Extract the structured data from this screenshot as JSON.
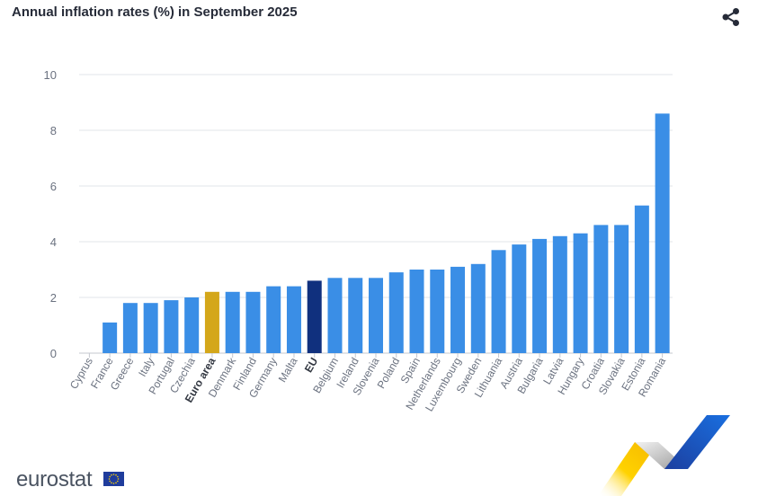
{
  "header": {
    "title": "Annual inflation rates (%) in September 2025",
    "share_icon": "share-icon"
  },
  "footer": {
    "brand": "eurostat",
    "flag_icon": "eu-flag-icon"
  },
  "colors": {
    "country": "#3a8ee6",
    "euro_area": "#d4a71a",
    "eu": "#10307e",
    "grid": "#e2e5ea",
    "axis_text": "#6b7280"
  },
  "chart_data": {
    "type": "bar",
    "title": "Annual inflation rates (%) in September 2025",
    "xlabel": "",
    "ylabel": "",
    "ylim": [
      0,
      10
    ],
    "yticks": [
      0,
      2,
      4,
      6,
      8,
      10
    ],
    "grid": true,
    "categories": [
      "Cyprus",
      "France",
      "Greece",
      "Italy",
      "Portugal",
      "Czechia",
      "Euro area",
      "Denmark",
      "Finland",
      "Germany",
      "Malta",
      "EU",
      "Belgium",
      "Ireland",
      "Slovenia",
      "Poland",
      "Spain",
      "Netherlands",
      "Luxembourg",
      "Sweden",
      "Lithuania",
      "Austria",
      "Bulgaria",
      "Latvia",
      "Hungary",
      "Croatia",
      "Slovakia",
      "Estonia",
      "Romania"
    ],
    "values": [
      0.0,
      1.1,
      1.8,
      1.8,
      1.9,
      2.0,
      2.2,
      2.2,
      2.2,
      2.4,
      2.4,
      2.6,
      2.7,
      2.7,
      2.7,
      2.9,
      3.0,
      3.0,
      3.1,
      3.2,
      3.7,
      3.9,
      4.1,
      4.2,
      4.3,
      4.6,
      4.6,
      5.3,
      8.6
    ],
    "highlight": {
      "Euro area": "euro_area",
      "EU": "eu"
    },
    "bold_labels": [
      "Euro area",
      "EU"
    ]
  }
}
